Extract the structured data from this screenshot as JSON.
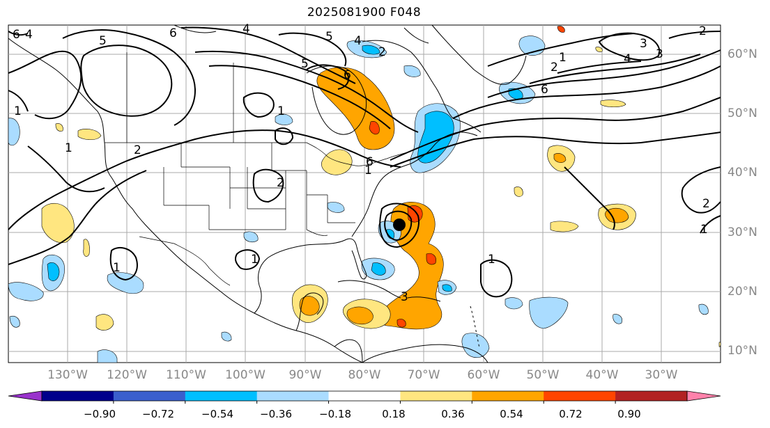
{
  "title": "2025081900 F048",
  "colors": {
    "land_border": "#000000",
    "grid": "#a0a0a0",
    "contour": "#000000",
    "storm_marker": "#000000"
  },
  "lat_labels": [
    "60°N",
    "50°N",
    "40°N",
    "30°N",
    "20°N",
    "10°N"
  ],
  "lon_labels": [
    "130°W",
    "120°W",
    "110°W",
    "100°W",
    "90°W",
    "80°W",
    "70°W",
    "60°W",
    "50°W",
    "40°W",
    "30°W"
  ],
  "colorbar": {
    "colors": [
      "#9932cc",
      "#00008b",
      "#3a5fcd",
      "#00bfff",
      "#aadcff",
      "#ffffff",
      "#ffe680",
      "#ffa500",
      "#ff4500",
      "#b22222",
      "#ff82ab"
    ],
    "ticks": [
      "−0.90",
      "−0.72",
      "−0.54",
      "−0.36",
      "−0.18",
      "0.18",
      "0.36",
      "0.54",
      "0.72",
      "0.90"
    ]
  },
  "contour_labels": [
    "6",
    "4",
    "5",
    "6",
    "4",
    "5",
    "6",
    "5",
    "6",
    "4",
    "3",
    "2",
    "1",
    "1",
    "1",
    "2",
    "1",
    "2",
    "1",
    "1",
    "6",
    "3",
    "2",
    "2",
    "4",
    "3",
    "2",
    "1",
    "1",
    "1"
  ]
}
